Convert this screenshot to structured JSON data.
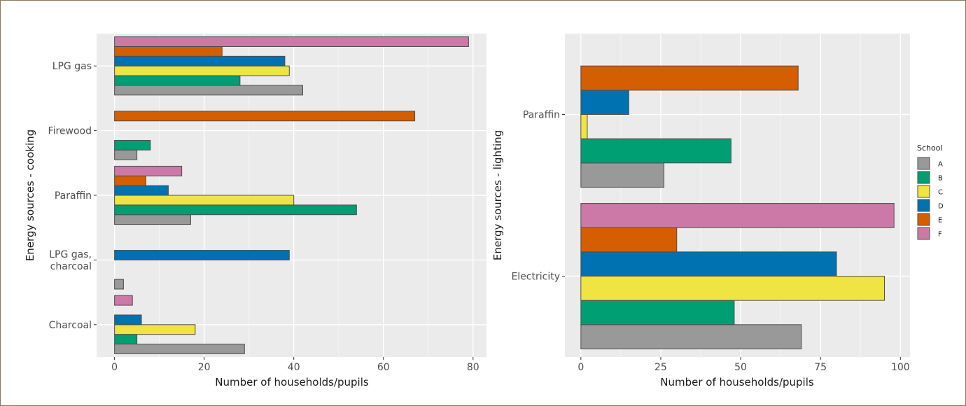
{
  "legend": {
    "title": "School",
    "entries": [
      {
        "name": "A",
        "color": "#999999"
      },
      {
        "name": "B",
        "color": "#009E73"
      },
      {
        "name": "C",
        "color": "#F0E442"
      },
      {
        "name": "D",
        "color": "#0072B2"
      },
      {
        "name": "E",
        "color": "#D55E00"
      },
      {
        "name": "F",
        "color": "#CC79A7"
      }
    ]
  },
  "chart_data": [
    {
      "type": "bar",
      "orientation": "horizontal",
      "categories": [
        "LPG gas",
        "Firewood",
        "Paraffin",
        "LPG gas,\ncharcoal",
        "Charcoal"
      ],
      "series": [
        {
          "name": "A",
          "values": [
            42,
            5,
            17,
            2,
            29
          ]
        },
        {
          "name": "B",
          "values": [
            28,
            8,
            54,
            null,
            5
          ]
        },
        {
          "name": "C",
          "values": [
            39,
            null,
            40,
            null,
            18
          ]
        },
        {
          "name": "D",
          "values": [
            38,
            null,
            12,
            39,
            6
          ]
        },
        {
          "name": "E",
          "values": [
            24,
            67,
            7,
            null,
            null
          ]
        },
        {
          "name": "F",
          "values": [
            79,
            null,
            15,
            null,
            4
          ]
        }
      ],
      "xlabel": "Number of households/pupils",
      "ylabel": "Energy sources - cooking",
      "xlim": [
        -4,
        83
      ],
      "xticks": [
        0,
        20,
        40,
        60,
        80
      ],
      "grid": true
    },
    {
      "type": "bar",
      "orientation": "horizontal",
      "categories": [
        "Paraffin",
        "Electricity"
      ],
      "series": [
        {
          "name": "A",
          "values": [
            26,
            69
          ]
        },
        {
          "name": "B",
          "values": [
            47,
            48
          ]
        },
        {
          "name": "C",
          "values": [
            2,
            95
          ]
        },
        {
          "name": "D",
          "values": [
            15,
            80
          ]
        },
        {
          "name": "E",
          "values": [
            68,
            30
          ]
        },
        {
          "name": "F",
          "values": [
            null,
            98
          ]
        }
      ],
      "xlabel": "Number of households/pupils",
      "ylabel": "Energy sources - lighting",
      "xlim": [
        -5,
        103
      ],
      "xticks": [
        0,
        25,
        50,
        75,
        100
      ],
      "legend_position": "right",
      "grid": true
    }
  ]
}
